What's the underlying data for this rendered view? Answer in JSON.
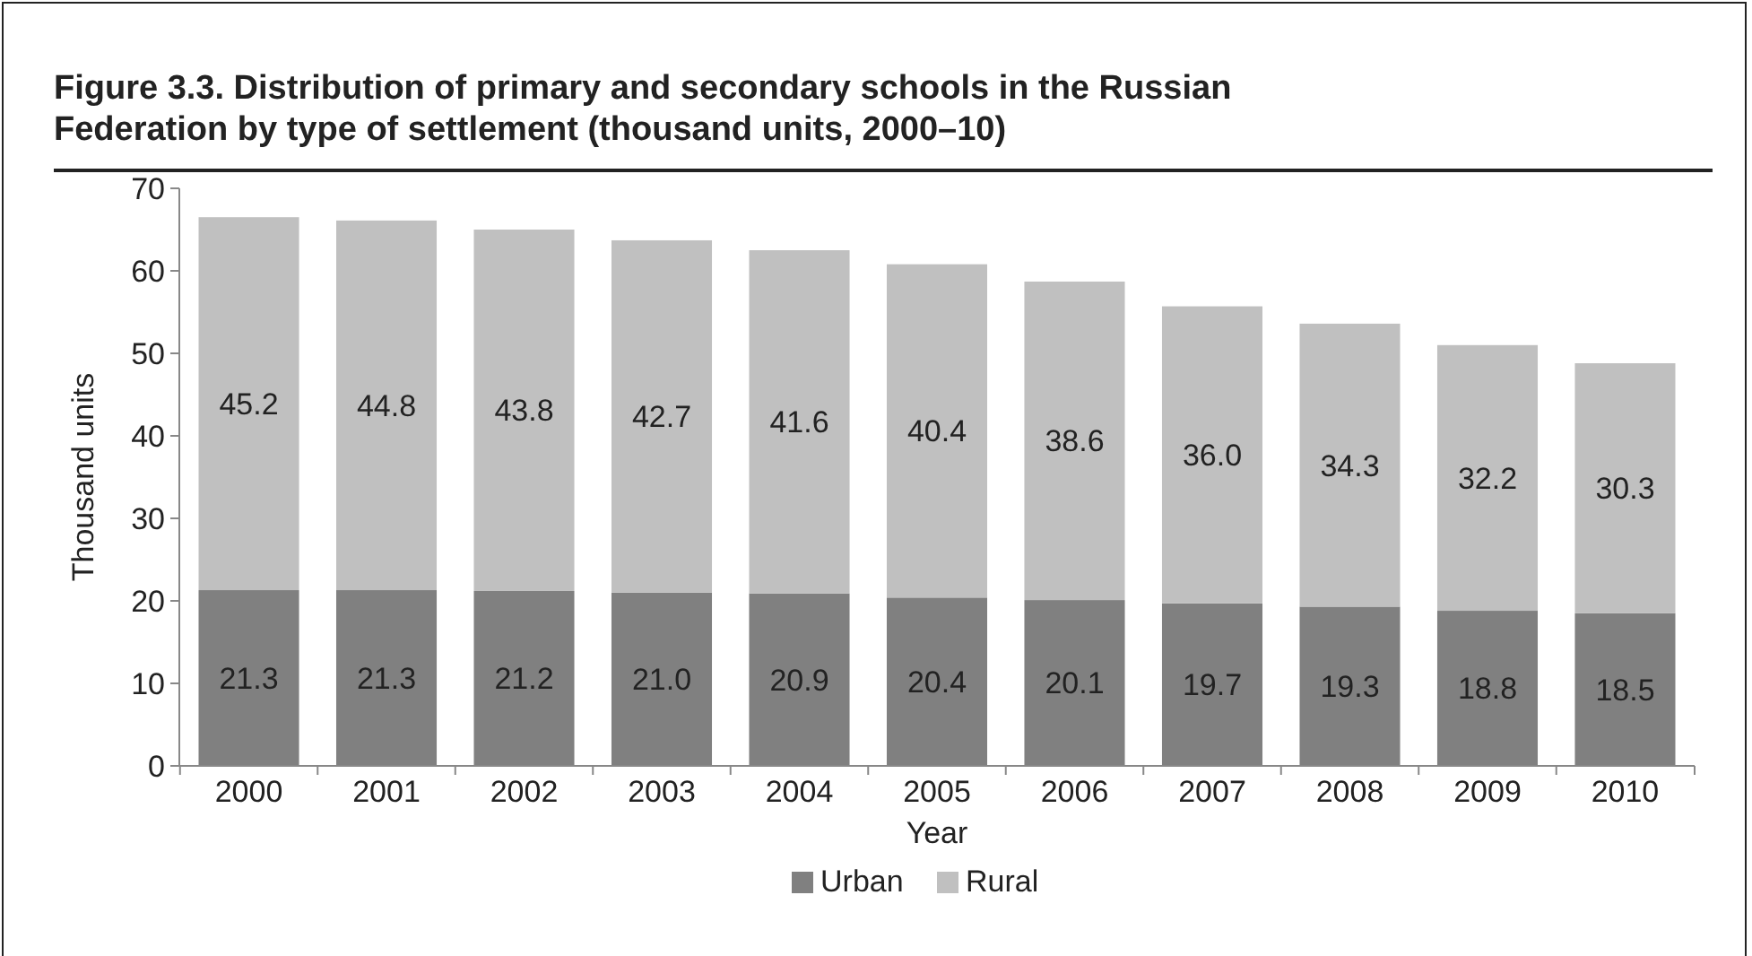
{
  "chart_data": {
    "type": "bar",
    "title": "Figure 3.3. Distribution of primary and secondary schools in the Russian Federation by type of settlement (thousand units, 2000–10)",
    "xlabel": "Year",
    "ylabel": "Thousand units",
    "categories": [
      "2000",
      "2001",
      "2002",
      "2003",
      "2004",
      "2005",
      "2006",
      "2007",
      "2008",
      "2009",
      "2010"
    ],
    "series": [
      {
        "name": "Urban",
        "color": "#808080",
        "values": [
          21.3,
          21.3,
          21.2,
          21.0,
          20.9,
          20.4,
          20.1,
          19.7,
          19.3,
          18.8,
          18.5
        ],
        "value_labels": [
          "21.3",
          "21.3",
          "21.2",
          "21.0",
          "20.9",
          "20.4",
          "20.1",
          "19.7",
          "19.3",
          "18.8",
          "18.5"
        ]
      },
      {
        "name": "Rural",
        "color": "#c0c0c0",
        "values": [
          45.2,
          44.8,
          43.8,
          42.7,
          41.6,
          40.4,
          38.6,
          36.0,
          34.3,
          32.2,
          30.3
        ],
        "value_labels": [
          "45.2",
          "44.8",
          "43.8",
          "42.7",
          "41.6",
          "40.4",
          "38.6",
          "36.0",
          "34.3",
          "32.2",
          "30.3"
        ]
      }
    ],
    "stacked": true,
    "ylim": [
      0,
      70
    ],
    "yticks": [
      0,
      10,
      20,
      30,
      40,
      50,
      60,
      70
    ],
    "grid": false,
    "legend": "bottom"
  }
}
